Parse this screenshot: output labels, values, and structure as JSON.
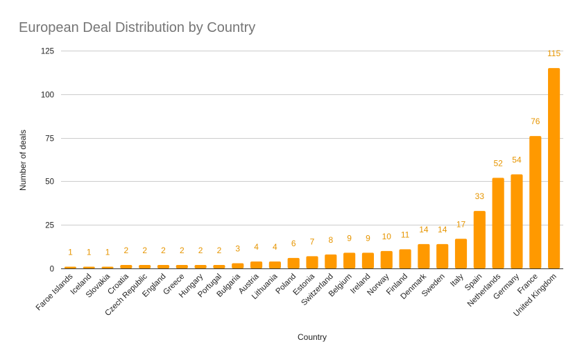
{
  "chart_data": {
    "type": "bar",
    "title": "European Deal Distribution by Country",
    "xlabel": "Country",
    "ylabel": "Number of deals",
    "ylim": [
      0,
      125
    ],
    "yticks": [
      0,
      25,
      50,
      75,
      100,
      125
    ],
    "grid": true,
    "legend": "none",
    "bar_color": "#ff9900",
    "label_color": "#e69500",
    "categories": [
      "Faroe Islands",
      "Iceland",
      "Slovakia",
      "Croatia",
      "Czech Republic",
      "England",
      "Greece",
      "Hungary",
      "Portugal",
      "Bulgaria",
      "Austria",
      "Lithuania",
      "Poland",
      "Estonia",
      "Switzerland",
      "Belgium",
      "Ireland",
      "Norway",
      "Finland",
      "Denmark",
      "Sweden",
      "Italy",
      "Spain",
      "Netherlands",
      "Germany",
      "France",
      "United Kingdom"
    ],
    "values": [
      1,
      1,
      1,
      2,
      2,
      2,
      2,
      2,
      2,
      3,
      4,
      4,
      6,
      7,
      8,
      9,
      9,
      10,
      11,
      14,
      14,
      17,
      33,
      52,
      54,
      76,
      115
    ]
  }
}
